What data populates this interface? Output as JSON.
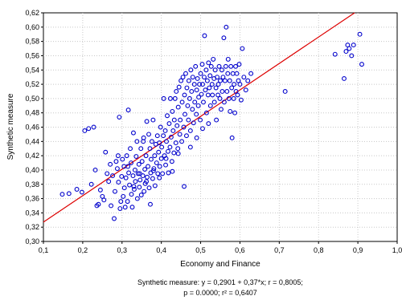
{
  "chart_data": {
    "type": "scatter",
    "xlabel": "Economy and Finance",
    "ylabel": "Synthetic measure",
    "xlim": [
      0.1,
      1.0
    ],
    "ylim": [
      0.3,
      0.62
    ],
    "x_ticks": [
      "0,1",
      "0,2",
      "0,3",
      "0,4",
      "0,5",
      "0,6",
      "0,7",
      "0,8",
      "0,9",
      "1,0"
    ],
    "y_ticks": [
      "0,30",
      "0,32",
      "0,34",
      "0,36",
      "0,38",
      "0,40",
      "0,42",
      "0,44",
      "0,46",
      "0,48",
      "0,50",
      "0,52",
      "0,54",
      "0,56",
      "0,58",
      "0,60",
      "0,62"
    ],
    "grid": true,
    "colors": {
      "points": "#0000cc",
      "fit_line": "#dd0000",
      "grid": "#c8c8c8"
    },
    "fit_line": {
      "intercept": 0.2901,
      "slope": 0.37
    },
    "caption_line1": "Synthetic measure:  y = 0,2901 + 0,37*x;  r = 0,8005;",
    "caption_line2": "p = 0.0000; r² = 0,6407",
    "points": [
      [
        0.148,
        0.366
      ],
      [
        0.165,
        0.367
      ],
      [
        0.185,
        0.373
      ],
      [
        0.198,
        0.369
      ],
      [
        0.205,
        0.455
      ],
      [
        0.215,
        0.458
      ],
      [
        0.222,
        0.38
      ],
      [
        0.228,
        0.46
      ],
      [
        0.232,
        0.4
      ],
      [
        0.236,
        0.35
      ],
      [
        0.24,
        0.352
      ],
      [
        0.245,
        0.372
      ],
      [
        0.25,
        0.363
      ],
      [
        0.254,
        0.358
      ],
      [
        0.258,
        0.425
      ],
      [
        0.262,
        0.395
      ],
      [
        0.266,
        0.384
      ],
      [
        0.27,
        0.408
      ],
      [
        0.272,
        0.35
      ],
      [
        0.276,
        0.392
      ],
      [
        0.28,
        0.332
      ],
      [
        0.282,
        0.37
      ],
      [
        0.285,
        0.412
      ],
      [
        0.288,
        0.402
      ],
      [
        0.291,
        0.383
      ],
      [
        0.293,
        0.474
      ],
      [
        0.295,
        0.346
      ],
      [
        0.297,
        0.356
      ],
      [
        0.299,
        0.391
      ],
      [
        0.301,
        0.415
      ],
      [
        0.303,
        0.363
      ],
      [
        0.305,
        0.405
      ],
      [
        0.306,
        0.375
      ],
      [
        0.308,
        0.348
      ],
      [
        0.31,
        0.389
      ],
      [
        0.312,
        0.42
      ],
      [
        0.314,
        0.356
      ],
      [
        0.316,
        0.484
      ],
      [
        0.317,
        0.396
      ],
      [
        0.319,
        0.379
      ],
      [
        0.321,
        0.43
      ],
      [
        0.323,
        0.41
      ],
      [
        0.324,
        0.366
      ],
      [
        0.326,
        0.348
      ],
      [
        0.328,
        0.392
      ],
      [
        0.329,
        0.452
      ],
      [
        0.331,
        0.373
      ],
      [
        0.333,
        0.4
      ],
      [
        0.334,
        0.384
      ],
      [
        0.336,
        0.419
      ],
      [
        0.338,
        0.44
      ],
      [
        0.339,
        0.36
      ],
      [
        0.341,
        0.395
      ],
      [
        0.343,
        0.408
      ],
      [
        0.344,
        0.376
      ],
      [
        0.346,
        0.386
      ],
      [
        0.348,
        0.43
      ],
      [
        0.349,
        0.365
      ],
      [
        0.351,
        0.412
      ],
      [
        0.353,
        0.392
      ],
      [
        0.354,
        0.44
      ],
      [
        0.356,
        0.37
      ],
      [
        0.358,
        0.401
      ],
      [
        0.359,
        0.381
      ],
      [
        0.361,
        0.42
      ],
      [
        0.363,
        0.468
      ],
      [
        0.364,
        0.39
      ],
      [
        0.366,
        0.405
      ],
      [
        0.368,
        0.45
      ],
      [
        0.369,
        0.375
      ],
      [
        0.371,
        0.43
      ],
      [
        0.373,
        0.396
      ],
      [
        0.374,
        0.415
      ],
      [
        0.376,
        0.44
      ],
      [
        0.378,
        0.388
      ],
      [
        0.379,
        0.47
      ],
      [
        0.381,
        0.402
      ],
      [
        0.383,
        0.42
      ],
      [
        0.384,
        0.378
      ],
      [
        0.386,
        0.436
      ],
      [
        0.388,
        0.41
      ],
      [
        0.39,
        0.448
      ],
      [
        0.391,
        0.395
      ],
      [
        0.393,
        0.425
      ],
      [
        0.395,
        0.438
      ],
      [
        0.396,
        0.405
      ],
      [
        0.398,
        0.46
      ],
      [
        0.4,
        0.416
      ],
      [
        0.401,
        0.432
      ],
      [
        0.403,
        0.395
      ],
      [
        0.405,
        0.448
      ],
      [
        0.406,
        0.5
      ],
      [
        0.408,
        0.42
      ],
      [
        0.41,
        0.455
      ],
      [
        0.411,
        0.407
      ],
      [
        0.413,
        0.44
      ],
      [
        0.415,
        0.476
      ],
      [
        0.417,
        0.426
      ],
      [
        0.418,
        0.396
      ],
      [
        0.42,
        0.465
      ],
      [
        0.422,
        0.432
      ],
      [
        0.423,
        0.5
      ],
      [
        0.425,
        0.446
      ],
      [
        0.427,
        0.412
      ],
      [
        0.428,
        0.482
      ],
      [
        0.43,
        0.455
      ],
      [
        0.432,
        0.424
      ],
      [
        0.433,
        0.47
      ],
      [
        0.435,
        0.5
      ],
      [
        0.437,
        0.438
      ],
      [
        0.438,
        0.51
      ],
      [
        0.44,
        0.462
      ],
      [
        0.442,
        0.43
      ],
      [
        0.443,
        0.488
      ],
      [
        0.445,
        0.516
      ],
      [
        0.447,
        0.45
      ],
      [
        0.448,
        0.47
      ],
      [
        0.45,
        0.525
      ],
      [
        0.452,
        0.44
      ],
      [
        0.453,
        0.495
      ],
      [
        0.455,
        0.53
      ],
      [
        0.457,
        0.46
      ],
      [
        0.459,
        0.505
      ],
      [
        0.46,
        0.478
      ],
      [
        0.462,
        0.535
      ],
      [
        0.464,
        0.448
      ],
      [
        0.465,
        0.515
      ],
      [
        0.467,
        0.49
      ],
      [
        0.469,
        0.47
      ],
      [
        0.47,
        0.525
      ],
      [
        0.472,
        0.5
      ],
      [
        0.474,
        0.455
      ],
      [
        0.475,
        0.54
      ],
      [
        0.477,
        0.51
      ],
      [
        0.479,
        0.485
      ],
      [
        0.48,
        0.53
      ],
      [
        0.482,
        0.466
      ],
      [
        0.484,
        0.52
      ],
      [
        0.485,
        0.495
      ],
      [
        0.487,
        0.545
      ],
      [
        0.489,
        0.478
      ],
      [
        0.49,
        0.512
      ],
      [
        0.492,
        0.528
      ],
      [
        0.494,
        0.49
      ],
      [
        0.495,
        0.502
      ],
      [
        0.497,
        0.52
      ],
      [
        0.499,
        0.47
      ],
      [
        0.5,
        0.535
      ],
      [
        0.502,
        0.506
      ],
      [
        0.504,
        0.548
      ],
      [
        0.505,
        0.52
      ],
      [
        0.507,
        0.495
      ],
      [
        0.509,
        0.53
      ],
      [
        0.51,
        0.588
      ],
      [
        0.512,
        0.512
      ],
      [
        0.514,
        0.54
      ],
      [
        0.515,
        0.48
      ],
      [
        0.517,
        0.525
      ],
      [
        0.519,
        0.505
      ],
      [
        0.52,
        0.55
      ],
      [
        0.522,
        0.515
      ],
      [
        0.524,
        0.532
      ],
      [
        0.525,
        0.49
      ],
      [
        0.527,
        0.545
      ],
      [
        0.529,
        0.52
      ],
      [
        0.53,
        0.505
      ],
      [
        0.532,
        0.555
      ],
      [
        0.534,
        0.528
      ],
      [
        0.535,
        0.495
      ],
      [
        0.537,
        0.54
      ],
      [
        0.539,
        0.515
      ],
      [
        0.54,
        0.47
      ],
      [
        0.542,
        0.53
      ],
      [
        0.544,
        0.505
      ],
      [
        0.545,
        0.52
      ],
      [
        0.547,
        0.545
      ],
      [
        0.549,
        0.5
      ],
      [
        0.55,
        0.525
      ],
      [
        0.552,
        0.485
      ],
      [
        0.554,
        0.54
      ],
      [
        0.555,
        0.51
      ],
      [
        0.557,
        0.53
      ],
      [
        0.559,
        0.585
      ],
      [
        0.56,
        0.495
      ],
      [
        0.562,
        0.525
      ],
      [
        0.564,
        0.545
      ],
      [
        0.565,
        0.6
      ],
      [
        0.567,
        0.51
      ],
      [
        0.569,
        0.535
      ],
      [
        0.57,
        0.555
      ],
      [
        0.572,
        0.5
      ],
      [
        0.574,
        0.525
      ],
      [
        0.575,
        0.482
      ],
      [
        0.577,
        0.545
      ],
      [
        0.579,
        0.515
      ],
      [
        0.58,
        0.445
      ],
      [
        0.582,
        0.535
      ],
      [
        0.584,
        0.5
      ],
      [
        0.585,
        0.52
      ],
      [
        0.587,
        0.48
      ],
      [
        0.589,
        0.545
      ],
      [
        0.59,
        0.51
      ],
      [
        0.592,
        0.535
      ],
      [
        0.594,
        0.505
      ],
      [
        0.596,
        0.525
      ],
      [
        0.598,
        0.548
      ],
      [
        0.6,
        0.52
      ],
      [
        0.603,
        0.498
      ],
      [
        0.606,
        0.57
      ],
      [
        0.61,
        0.53
      ],
      [
        0.615,
        0.512
      ],
      [
        0.62,
        0.525
      ],
      [
        0.628,
        0.535
      ],
      [
        0.715,
        0.51
      ],
      [
        0.842,
        0.562
      ],
      [
        0.865,
        0.528
      ],
      [
        0.87,
        0.566
      ],
      [
        0.874,
        0.575
      ],
      [
        0.878,
        0.57
      ],
      [
        0.884,
        0.56
      ],
      [
        0.889,
        0.575
      ],
      [
        0.905,
        0.59
      ],
      [
        0.91,
        0.548
      ],
      [
        0.355,
        0.445
      ],
      [
        0.372,
        0.352
      ],
      [
        0.29,
        0.42
      ],
      [
        0.315,
        0.405
      ],
      [
        0.33,
        0.377
      ],
      [
        0.345,
        0.395
      ],
      [
        0.362,
        0.384
      ],
      [
        0.38,
        0.399
      ],
      [
        0.395,
        0.389
      ],
      [
        0.412,
        0.416
      ],
      [
        0.428,
        0.398
      ],
      [
        0.443,
        0.423
      ],
      [
        0.458,
        0.377
      ],
      [
        0.474,
        0.432
      ],
      [
        0.49,
        0.445
      ],
      [
        0.505,
        0.458
      ],
      [
        0.52,
        0.465
      ]
    ]
  }
}
